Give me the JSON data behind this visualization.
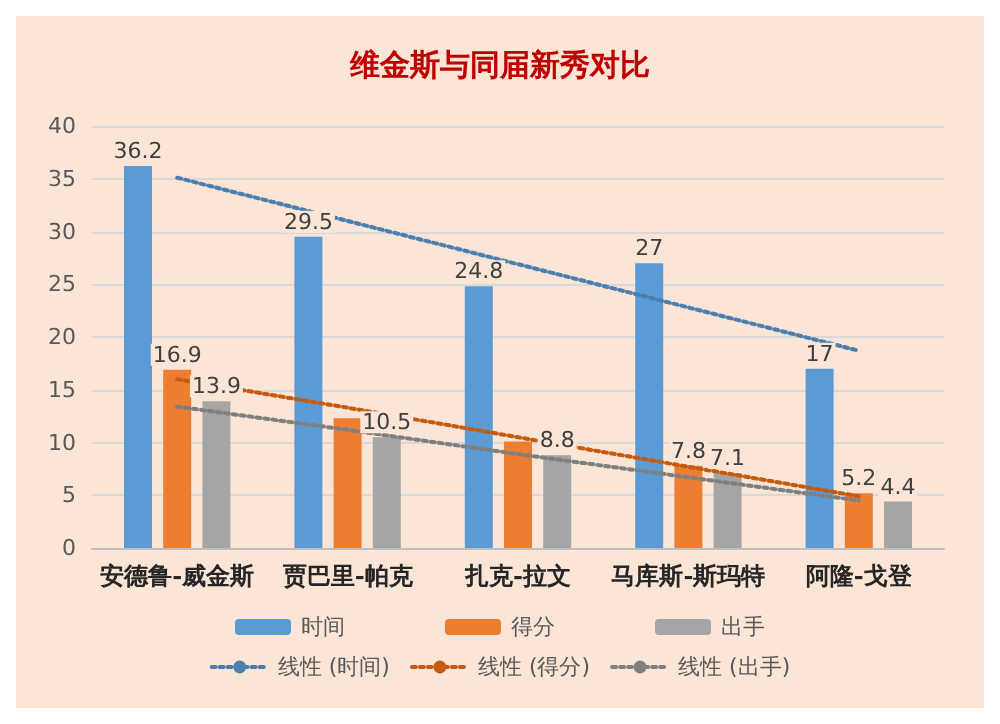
{
  "chart_data": {
    "type": "bar",
    "title": "维金斯与同届新秀对比",
    "categories": [
      "安德鲁-威金斯",
      "贾巴里-帕克",
      "扎克-拉文",
      "马库斯-斯玛特",
      "阿隆-戈登"
    ],
    "series": [
      {
        "name": "时间",
        "color": "#5b9bd5",
        "values": [
          36.2,
          29.5,
          24.8,
          27,
          17
        ],
        "value_labels": [
          "36.2",
          "29.5",
          "24.8",
          "27",
          "17"
        ]
      },
      {
        "name": "得分",
        "color": "#ed7d31",
        "values": [
          16.9,
          12.3,
          10.1,
          7.8,
          5.2
        ],
        "value_labels": [
          "16.9",
          null,
          null,
          "7.8",
          "5.2"
        ]
      },
      {
        "name": "出手",
        "color": "#a5a5a5",
        "values": [
          13.9,
          10.5,
          8.8,
          7.1,
          4.4
        ],
        "value_labels": [
          "13.9",
          "10.5",
          "8.8",
          "7.1",
          "4.4"
        ]
      },
      {
        "name": "线性 (时间)",
        "type": "line",
        "color": "#4a7fb0",
        "line_style": "dotted",
        "marker": "none",
        "values": [
          35.1,
          31,
          26.9,
          22.8,
          18.7
        ]
      },
      {
        "name": "线性 (得分)",
        "type": "line",
        "color": "#c55a11",
        "line_style": "dotted",
        "marker": "none",
        "values": [
          16,
          13.3,
          10.5,
          7.7,
          4.9
        ]
      },
      {
        "name": "线性 (出手)",
        "type": "line",
        "color": "#7f7f7f",
        "line_style": "dotted",
        "marker": "none",
        "values": [
          13.4,
          11.2,
          8.9,
          6.7,
          4.5
        ]
      }
    ],
    "ylim": [
      0,
      40
    ],
    "yticks": [
      0,
      5,
      10,
      15,
      20,
      25,
      30,
      35,
      40
    ],
    "grid": "y",
    "legend": "bottom"
  }
}
